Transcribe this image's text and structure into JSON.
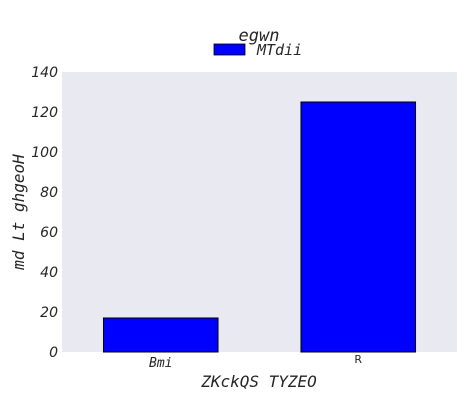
{
  "chart_data": {
    "type": "bar",
    "title": "egwn",
    "xlabel": "ZKckQS TYZEO",
    "ylabel": "md Lt ghgeoH",
    "categories": [
      "Bmi",
      "R"
    ],
    "series": [
      {
        "name": "MTdii",
        "values": [
          17,
          125
        ]
      }
    ],
    "ylim": [
      0,
      140
    ],
    "yticks": [
      0,
      20,
      40,
      60,
      80,
      100,
      120,
      140
    ],
    "grid": false,
    "legend_position": "top-center",
    "colors": {
      "background": "#e9e9f1",
      "bar_fill": "#0000ff",
      "bar_stroke": "#000000"
    }
  }
}
